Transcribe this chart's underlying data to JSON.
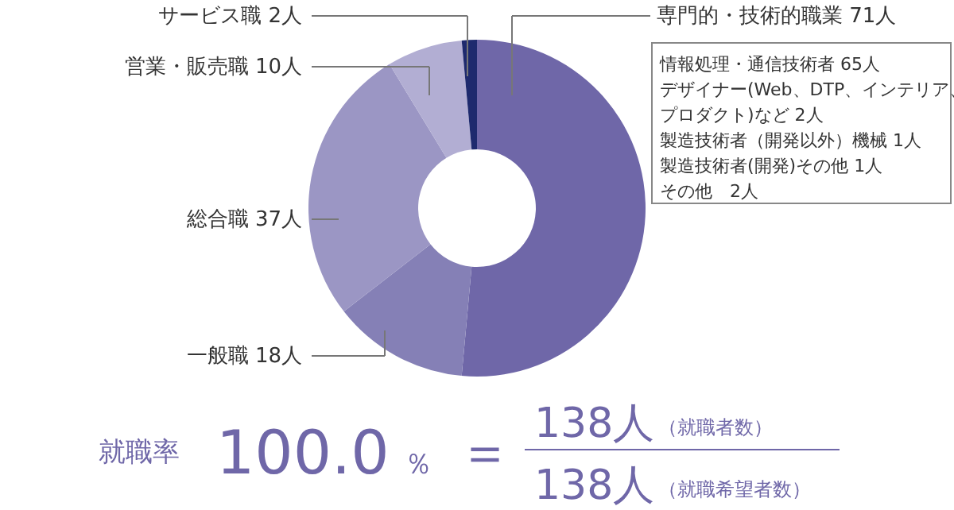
{
  "chart_data": {
    "type": "donut",
    "categories": [
      "専門的・技術的職業",
      "一般職",
      "総合職",
      "営業・販売職",
      "サービス職"
    ],
    "values": [
      71,
      18,
      37,
      10,
      2
    ],
    "value_labels": [
      "71人",
      "18人",
      "37人",
      "10人",
      "2人"
    ],
    "colors": [
      "#6f67a8",
      "#8580b6",
      "#9b96c4",
      "#b2aed3",
      "#1e2a6e"
    ],
    "annotations": [
      "情報処理・通信技術者 65人",
      "デザイナー(Web、DTP、インテリア、",
      "プロダクト)など 2人",
      "製造技術者（開発以外）機械 1人",
      "製造技術者(開発)その他 1人",
      "その他　2人",
      "就職率",
      "100.0",
      "％",
      "＝",
      "138人",
      "（就職者数）",
      "138人",
      "（就職希望者数）"
    ]
  }
}
